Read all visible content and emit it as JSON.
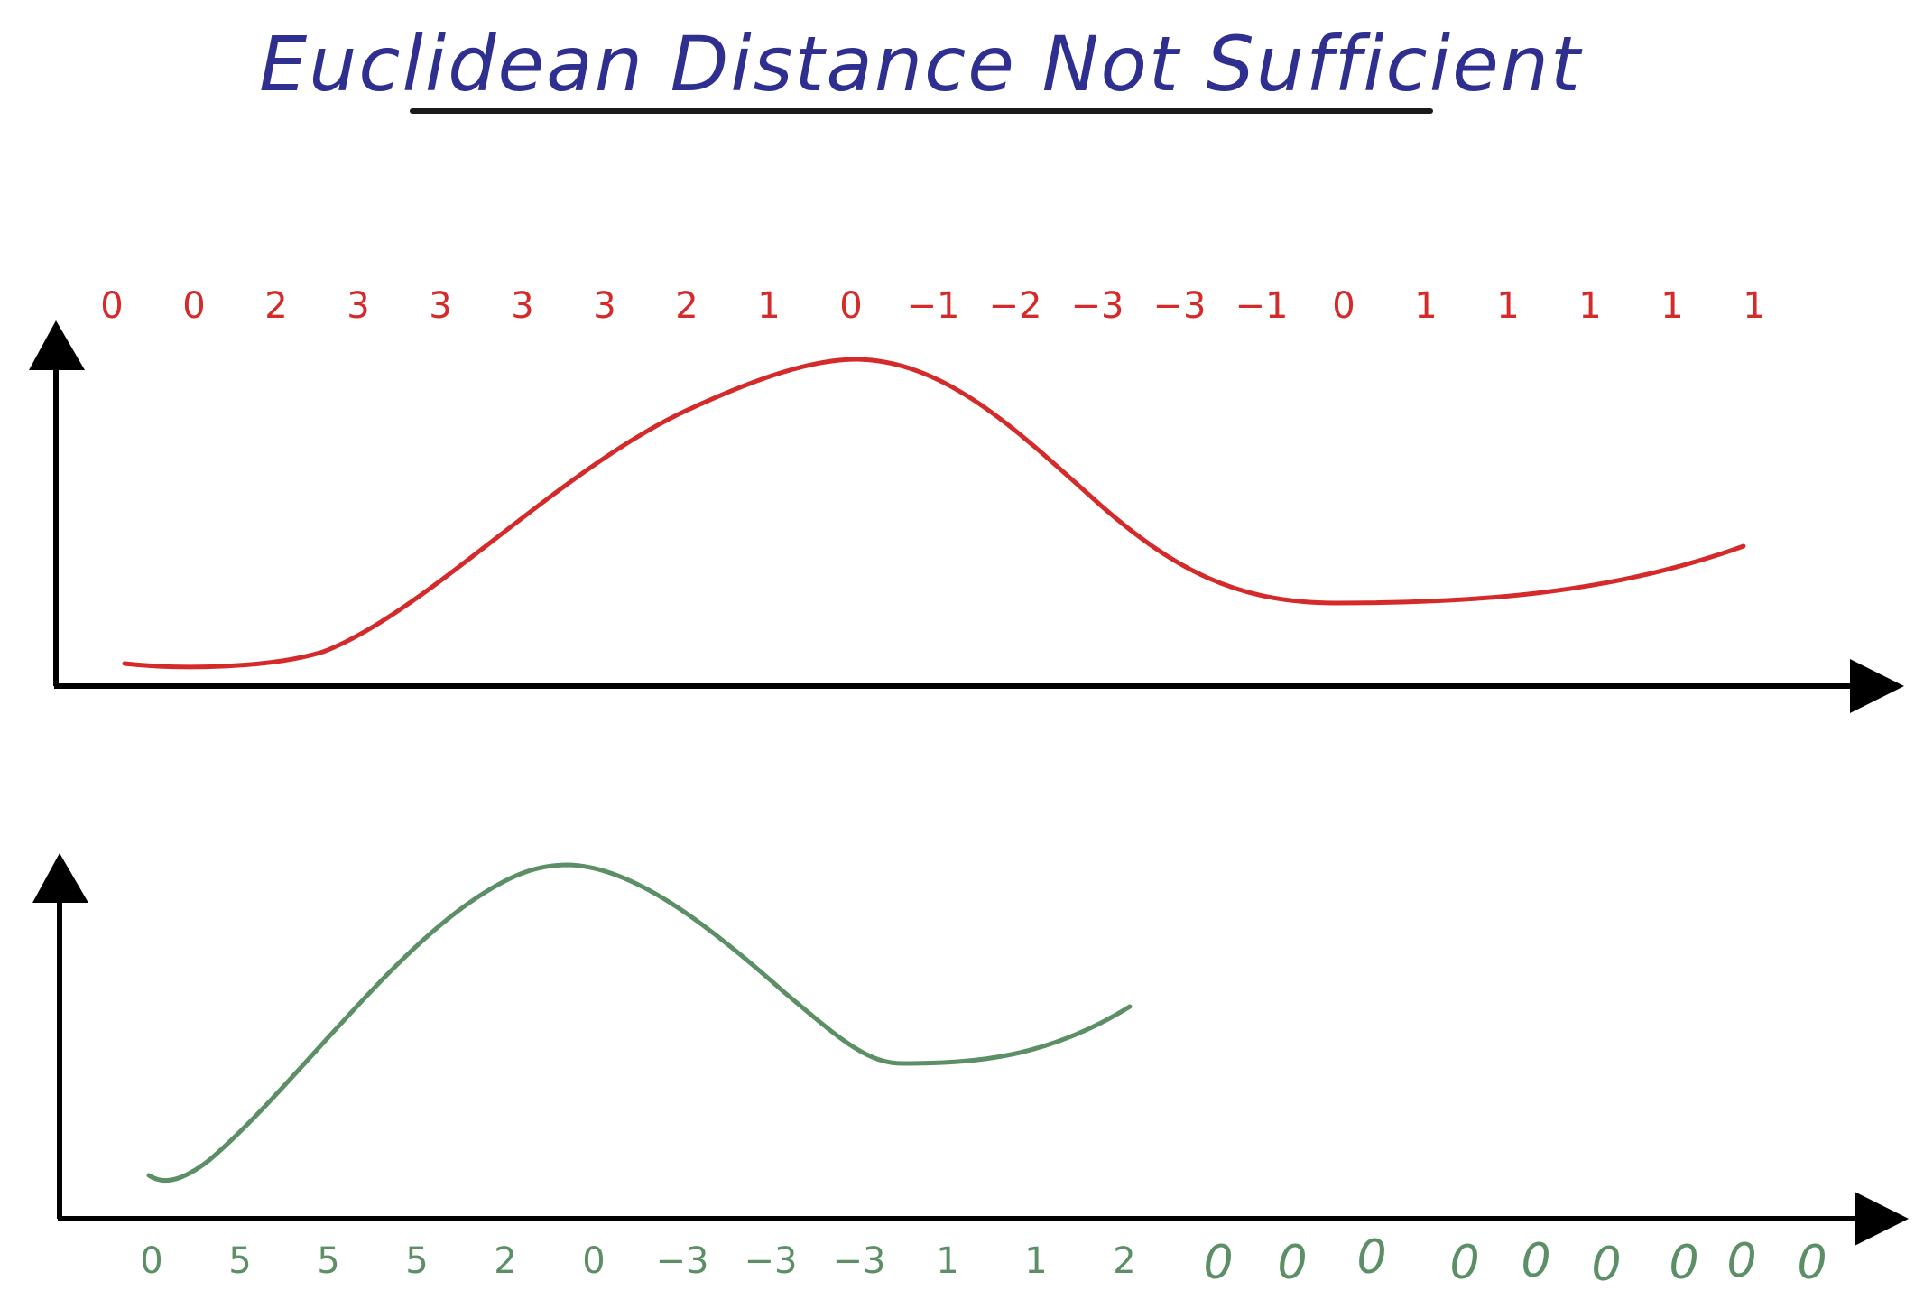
{
  "title": "Euclidean Distance Not Sufficient",
  "colors": {
    "title": "#2f2f8f",
    "axis": "#000000",
    "top_series": "#d42a2a",
    "bottom_series": "#5c8f66"
  },
  "top_panel": {
    "sequence": [
      "0",
      "0",
      "2",
      "3",
      "3",
      "3",
      "3",
      "2",
      "1",
      "0",
      "-1",
      "-2",
      "-3",
      "-3",
      "-1",
      "0",
      "1",
      "1",
      "1",
      "1",
      "1"
    ]
  },
  "bottom_panel": {
    "sequence": [
      "0",
      "5",
      "5",
      "5",
      "2",
      "0",
      "-3",
      "-3",
      "-3",
      "1",
      "1",
      "2"
    ],
    "padding": [
      "0",
      "0",
      "0",
      "0",
      "0",
      "0",
      "0",
      "0",
      "0"
    ]
  }
}
